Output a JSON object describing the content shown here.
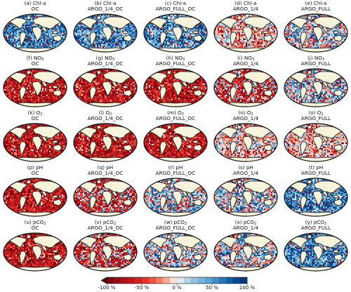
{
  "chart_data": {
    "type": "heatmap",
    "panels": [
      {
        "id": "a",
        "title_line1": "(a) Chl-a",
        "title_line2": "OC",
        "variable": "Chl-a",
        "experiment": "OC",
        "pattern": "improved"
      },
      {
        "id": "b",
        "title_line1": "(b) Chl-a",
        "title_line2": "ARGO_1/4_OC",
        "variable": "Chl-a",
        "experiment": "ARGO_1/4_OC",
        "pattern": "improved"
      },
      {
        "id": "c",
        "title_line1": "(c) Chl-a",
        "title_line2": "ARGO_FULL_OC",
        "variable": "Chl-a",
        "experiment": "ARGO_FULL_OC",
        "pattern": "improved"
      },
      {
        "id": "d",
        "title_line1": "(d) Chl-a",
        "title_line2": "ARGO_1/4",
        "variable": "Chl-a",
        "experiment": "ARGO_1/4",
        "pattern": "neutral"
      },
      {
        "id": "e",
        "title_line1": "(e) Chl-a",
        "title_line2": "ARGO_FULL",
        "variable": "Chl-a",
        "experiment": "ARGO_FULL",
        "pattern": "mixed_improved"
      },
      {
        "id": "f",
        "title_line1": "(f) NO",
        "title_sub": "3",
        "title_line2": "OC",
        "variable": "NO3",
        "experiment": "OC",
        "pattern": "degraded"
      },
      {
        "id": "g",
        "title_line1": "(g) NO",
        "title_sub": "3",
        "title_line2": "ARGO_1/4_OC",
        "variable": "NO3",
        "experiment": "ARGO_1/4_OC",
        "pattern": "degraded"
      },
      {
        "id": "h",
        "title_line1": "(h) NO",
        "title_sub": "3",
        "title_line2": "ARGO_FULL_OC",
        "variable": "NO3",
        "experiment": "ARGO_FULL_OC",
        "pattern": "degraded"
      },
      {
        "id": "i",
        "title_line1": "(i) NO",
        "title_sub": "3",
        "title_line2": "ARGO_1/4",
        "variable": "NO3",
        "experiment": "ARGO_1/4",
        "pattern": "mixed"
      },
      {
        "id": "j",
        "title_line1": "(j) NO",
        "title_sub": "3",
        "title_line2": "ARGO_FULL",
        "variable": "NO3",
        "experiment": "ARGO_FULL",
        "pattern": "mixed_improved"
      },
      {
        "id": "k",
        "title_line1": "(k) O",
        "title_sub": "2",
        "title_line2": "OC",
        "variable": "O2",
        "experiment": "OC",
        "pattern": "degraded"
      },
      {
        "id": "l",
        "title_line1": "(l) O",
        "title_sub": "2",
        "title_line2": "ARGO_1/4_OC",
        "variable": "O2",
        "experiment": "ARGO_1/4_OC",
        "pattern": "degraded"
      },
      {
        "id": "m",
        "title_line1": "(m) O",
        "title_sub": "2",
        "title_line2": "ARGO_FULL_OC",
        "variable": "O2",
        "experiment": "ARGO_FULL_OC",
        "pattern": "degraded"
      },
      {
        "id": "n",
        "title_line1": "(n) O",
        "title_sub": "2",
        "title_line2": "ARGO_1/4",
        "variable": "O2",
        "experiment": "ARGO_1/4",
        "pattern": "neutral"
      },
      {
        "id": "o",
        "title_line1": "(o) O",
        "title_sub": "2",
        "title_line2": "ARGO_FULL",
        "variable": "O2",
        "experiment": "ARGO_FULL",
        "pattern": "neutral"
      },
      {
        "id": "p",
        "title_line1": "(p) pH",
        "title_line2": "OC",
        "variable": "pH",
        "experiment": "OC",
        "pattern": "degraded"
      },
      {
        "id": "q",
        "title_line1": "(q) pH",
        "title_line2": "ARGO_1/4_OC",
        "variable": "pH",
        "experiment": "ARGO_1/4_OC",
        "pattern": "mixed"
      },
      {
        "id": "r",
        "title_line1": "(r) pH",
        "title_line2": "ARGO_FULL_OC",
        "variable": "pH",
        "experiment": "ARGO_FULL_OC",
        "pattern": "mixed_improved"
      },
      {
        "id": "s",
        "title_line1": "(s) pH",
        "title_line2": "ARGO_1/4",
        "variable": "pH",
        "experiment": "ARGO_1/4",
        "pattern": "mixed_improved"
      },
      {
        "id": "t",
        "title_line1": "(t) pH",
        "title_line2": "ARGO_FULL",
        "variable": "pH",
        "experiment": "ARGO_FULL",
        "pattern": "improved"
      },
      {
        "id": "u",
        "title_line1": "(u) pCO",
        "title_sub": "2",
        "title_line2": "OC",
        "variable": "pCO2",
        "experiment": "OC",
        "pattern": "degraded"
      },
      {
        "id": "v",
        "title_line1": "(v) pCO",
        "title_sub": "2",
        "title_line2": "ARGO_1/4_OC",
        "variable": "pCO2",
        "experiment": "ARGO_1/4_OC",
        "pattern": "mixed"
      },
      {
        "id": "w",
        "title_line1": "(w) pCO",
        "title_sub": "2",
        "title_line2": "ARGO_FULL_OC",
        "variable": "pCO2",
        "experiment": "ARGO_FULL_OC",
        "pattern": "mixed_improved"
      },
      {
        "id": "x",
        "title_line1": "(x) pCO",
        "title_sub": "2",
        "title_line2": "ARGO_1/4",
        "variable": "pCO2",
        "experiment": "ARGO_1/4",
        "pattern": "mixed_improved"
      },
      {
        "id": "y",
        "title_line1": "(y) pCO",
        "title_sub": "2",
        "title_line2": "ARGO_FULL",
        "variable": "pCO2",
        "experiment": "ARGO_FULL",
        "pattern": "improved"
      }
    ],
    "grid_columns": 5,
    "grid_rows": 5,
    "projection": "Mollweide (global)",
    "colorbar": {
      "min": -100,
      "max": 100,
      "n_bins": 20,
      "ticks": [
        -100,
        -50,
        0,
        50,
        100
      ],
      "tick_labels": [
        "-100 %",
        "-50 %",
        "0 %",
        "50 %",
        "100 %"
      ],
      "extend_min_arrow": true,
      "colormap": "RdBu (red = negative, blue = positive)"
    }
  },
  "colors": {
    "land": "#f8f4dc",
    "coastline": "#111111",
    "map_border": "#111111",
    "neg_strong": "#8b0a16",
    "neutral": "#f4f4f4",
    "pos_strong": "#0d3f80"
  }
}
